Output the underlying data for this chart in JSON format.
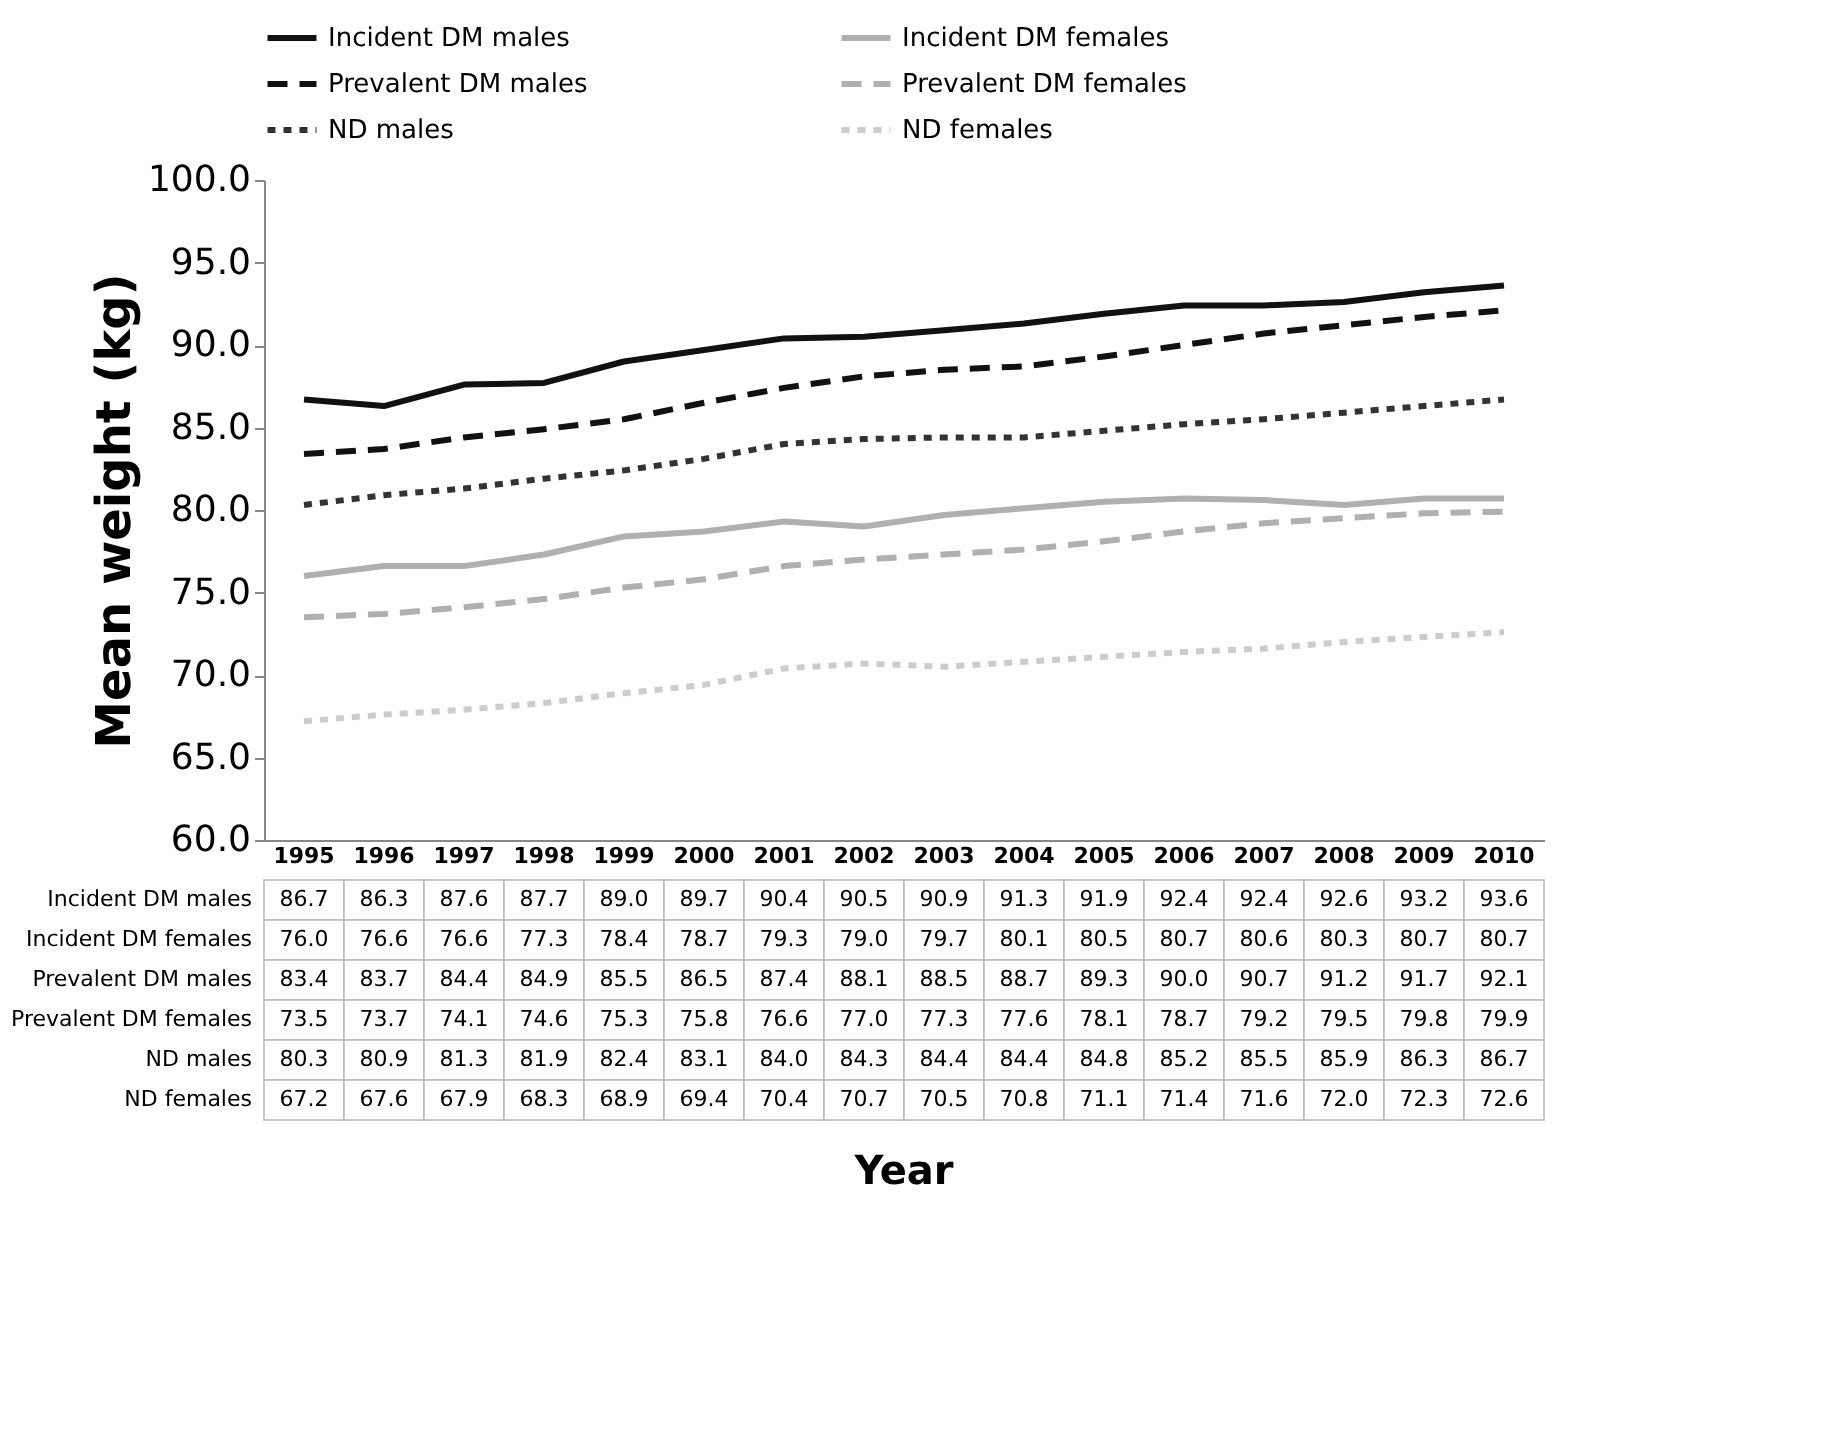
{
  "chart_data": {
    "type": "line",
    "annotations": [
      "Year"
    ],
    "ylabel": "Mean weight (kg)",
    "categories": [
      "1995",
      "1996",
      "1997",
      "1998",
      "1999",
      "2000",
      "2001",
      "2002",
      "2003",
      "2004",
      "2005",
      "2006",
      "2007",
      "2008",
      "2009",
      "2010"
    ],
    "ylim": [
      60,
      100
    ],
    "yticks": [
      {
        "value": 60,
        "label": "60.0"
      },
      {
        "value": 65,
        "label": "65.0"
      },
      {
        "value": 70,
        "label": "70.0"
      },
      {
        "value": 75,
        "label": "75.0"
      },
      {
        "value": 80,
        "label": "80.0"
      },
      {
        "value": 85,
        "label": "85.0"
      },
      {
        "value": 90,
        "label": "90.0"
      },
      {
        "value": 95,
        "label": "95.0"
      },
      {
        "value": 100,
        "label": "100.0"
      }
    ],
    "grid": false,
    "legend": "top",
    "marker": "none",
    "series": [
      {
        "name": "Incident DM males",
        "color": "#111111",
        "line_style": "solid",
        "values": [
          86.7,
          86.3,
          87.6,
          87.7,
          89.0,
          89.7,
          90.4,
          90.5,
          90.9,
          91.3,
          91.9,
          92.4,
          92.4,
          92.6,
          93.2,
          93.6
        ],
        "value_labels": [
          "86.7",
          "86.3",
          "87.6",
          "87.7",
          "89.0",
          "89.7",
          "90.4",
          "90.5",
          "90.9",
          "91.3",
          "91.9",
          "92.4",
          "92.4",
          "92.6",
          "93.2",
          "93.6"
        ]
      },
      {
        "name": "Incident DM females",
        "color": "#b0b0b0",
        "line_style": "solid",
        "values": [
          76.0,
          76.6,
          76.6,
          77.3,
          78.4,
          78.7,
          79.3,
          79.0,
          79.7,
          80.1,
          80.5,
          80.7,
          80.6,
          80.3,
          80.7,
          80.7
        ],
        "value_labels": [
          "76.0",
          "76.6",
          "76.6",
          "77.3",
          "78.4",
          "78.7",
          "79.3",
          "79.0",
          "79.7",
          "80.1",
          "80.5",
          "80.7",
          "80.6",
          "80.3",
          "80.7",
          "80.7"
        ]
      },
      {
        "name": "Prevalent DM males",
        "color": "#111111",
        "line_style": "dashed",
        "values": [
          83.4,
          83.7,
          84.4,
          84.9,
          85.5,
          86.5,
          87.4,
          88.1,
          88.5,
          88.7,
          89.3,
          90.0,
          90.7,
          91.2,
          91.7,
          92.1
        ],
        "value_labels": [
          "83.4",
          "83.7",
          "84.4",
          "84.9",
          "85.5",
          "86.5",
          "87.4",
          "88.1",
          "88.5",
          "88.7",
          "89.3",
          "90.0",
          "90.7",
          "91.2",
          "91.7",
          "92.1"
        ]
      },
      {
        "name": "Prevalent DM females",
        "color": "#b0b0b0",
        "line_style": "dashed",
        "values": [
          73.5,
          73.7,
          74.1,
          74.6,
          75.3,
          75.8,
          76.6,
          77.0,
          77.3,
          77.6,
          78.1,
          78.7,
          79.2,
          79.5,
          79.8,
          79.9
        ],
        "value_labels": [
          "73.5",
          "73.7",
          "74.1",
          "74.6",
          "75.3",
          "75.8",
          "76.6",
          "77.0",
          "77.3",
          "77.6",
          "78.1",
          "78.7",
          "79.2",
          "79.5",
          "79.8",
          "79.9"
        ]
      },
      {
        "name": "ND males",
        "color": "#333333",
        "line_style": "dotted",
        "values": [
          80.3,
          80.9,
          81.3,
          81.9,
          82.4,
          83.1,
          84.0,
          84.3,
          84.4,
          84.4,
          84.8,
          85.2,
          85.5,
          85.9,
          86.3,
          86.7
        ],
        "value_labels": [
          "80.3",
          "80.9",
          "81.3",
          "81.9",
          "82.4",
          "83.1",
          "84.0",
          "84.3",
          "84.4",
          "84.4",
          "84.8",
          "85.2",
          "85.5",
          "85.9",
          "86.3",
          "86.7"
        ]
      },
      {
        "name": "ND females",
        "color": "#cccccc",
        "line_style": "dotted",
        "values": [
          67.2,
          67.6,
          67.9,
          68.3,
          68.9,
          69.4,
          70.4,
          70.7,
          70.5,
          70.8,
          71.1,
          71.4,
          71.6,
          72.0,
          72.3,
          72.6
        ],
        "value_labels": [
          "67.2",
          "67.6",
          "67.9",
          "68.3",
          "68.9",
          "69.4",
          "70.4",
          "70.7",
          "70.5",
          "70.8",
          "71.1",
          "71.4",
          "71.6",
          "72.0",
          "72.3",
          "72.6"
        ]
      }
    ]
  }
}
